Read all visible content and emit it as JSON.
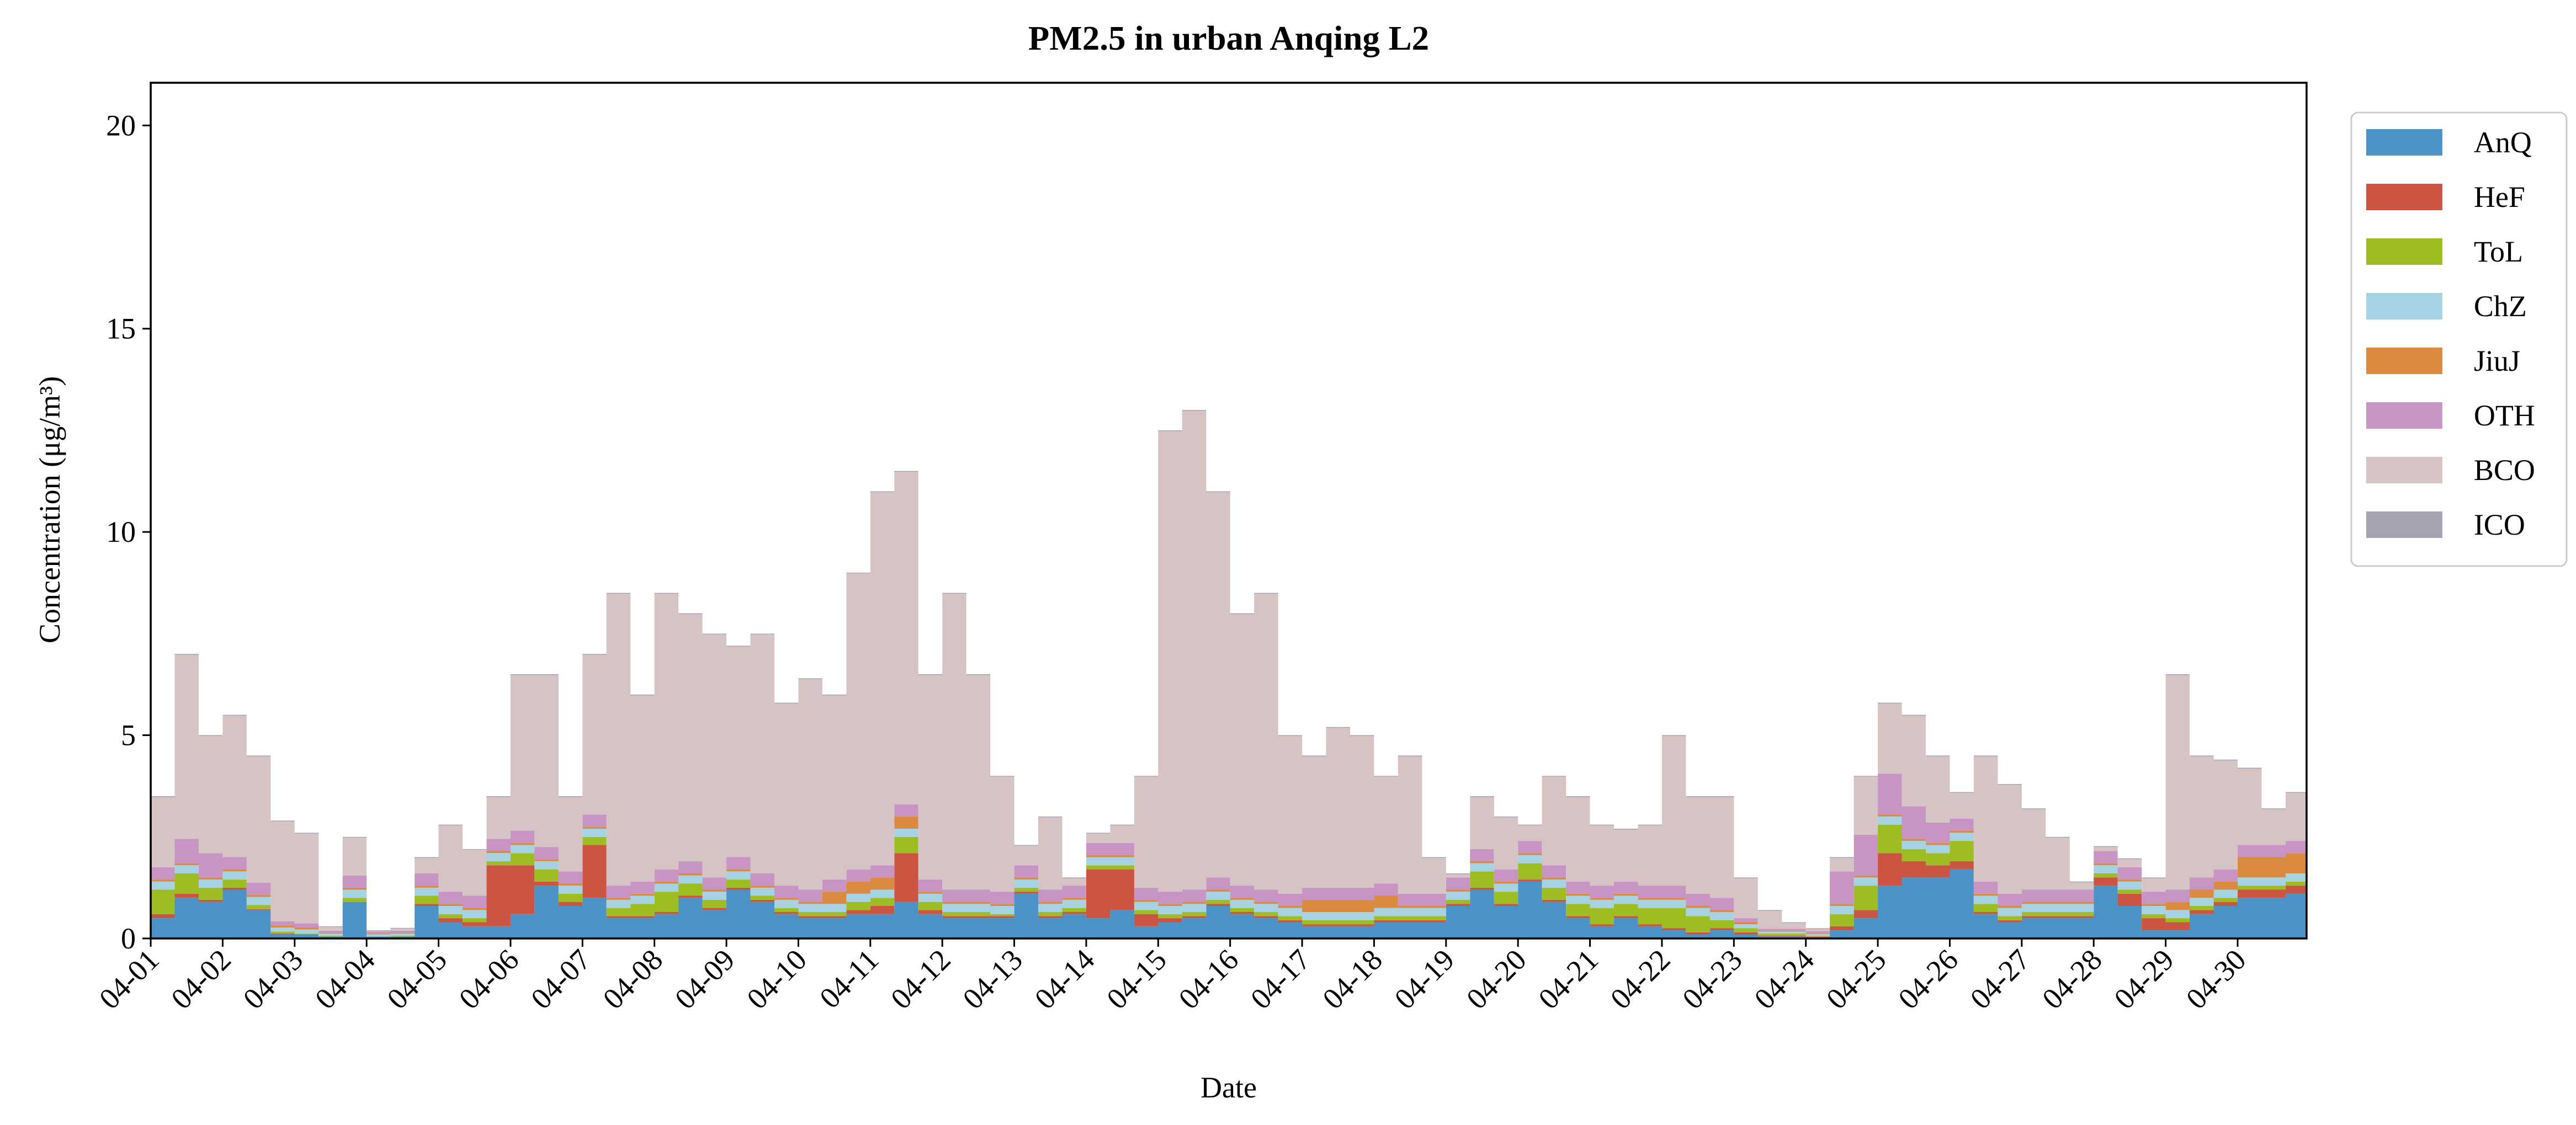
{
  "chart_data": {
    "type": "stacked_area",
    "title": "PM2.5 in urban Anqing L2",
    "xlabel": "Date",
    "ylabel": "Concentration (μg/m³)",
    "xlim": [
      1,
      30.958
    ],
    "ylim": [
      0,
      21.05
    ],
    "yticks": [
      0,
      5,
      10,
      15,
      20
    ],
    "xticks": [
      {
        "value": 1,
        "label": "04-01"
      },
      {
        "value": 2,
        "label": "04-02"
      },
      {
        "value": 3,
        "label": "04-03"
      },
      {
        "value": 4,
        "label": "04-04"
      },
      {
        "value": 5,
        "label": "04-05"
      },
      {
        "value": 6,
        "label": "04-06"
      },
      {
        "value": 7,
        "label": "04-07"
      },
      {
        "value": 8,
        "label": "04-08"
      },
      {
        "value": 9,
        "label": "04-09"
      },
      {
        "value": 10,
        "label": "04-10"
      },
      {
        "value": 11,
        "label": "04-11"
      },
      {
        "value": 12,
        "label": "04-12"
      },
      {
        "value": 13,
        "label": "04-13"
      },
      {
        "value": 14,
        "label": "04-14"
      },
      {
        "value": 15,
        "label": "04-15"
      },
      {
        "value": 16,
        "label": "04-16"
      },
      {
        "value": 17,
        "label": "04-17"
      },
      {
        "value": 18,
        "label": "04-18"
      },
      {
        "value": 19,
        "label": "04-19"
      },
      {
        "value": 20,
        "label": "04-20"
      },
      {
        "value": 21,
        "label": "04-21"
      },
      {
        "value": 22,
        "label": "04-22"
      },
      {
        "value": 23,
        "label": "04-23"
      },
      {
        "value": 24,
        "label": "04-24"
      },
      {
        "value": 25,
        "label": "04-25"
      },
      {
        "value": 26,
        "label": "04-26"
      },
      {
        "value": 27,
        "label": "04-27"
      },
      {
        "value": 28,
        "label": "04-28"
      },
      {
        "value": 29,
        "label": "04-29"
      },
      {
        "value": 30,
        "label": "04-30"
      }
    ],
    "legend": "upper right outside",
    "x": [
      1,
      1.333,
      1.667,
      2,
      2.333,
      2.667,
      3,
      3.333,
      3.667,
      4,
      4.333,
      4.667,
      5,
      5.333,
      5.667,
      6,
      6.333,
      6.667,
      7,
      7.333,
      7.667,
      8,
      8.333,
      8.667,
      9,
      9.333,
      9.667,
      10,
      10.333,
      10.667,
      11,
      11.333,
      11.667,
      12,
      12.333,
      12.667,
      13,
      13.333,
      13.667,
      14,
      14.333,
      14.667,
      15,
      15.333,
      15.667,
      16,
      16.333,
      16.667,
      17,
      17.333,
      17.667,
      18,
      18.333,
      18.667,
      19,
      19.333,
      19.667,
      20,
      20.333,
      20.667,
      21,
      21.333,
      21.667,
      22,
      22.333,
      22.667,
      23,
      23.333,
      23.667,
      24,
      24.333,
      24.667,
      25,
      25.333,
      25.667,
      26,
      26.333,
      26.667,
      27,
      27.333,
      27.667,
      28,
      28.333,
      28.667,
      29,
      29.333,
      29.667,
      30,
      30.333,
      30.667
    ],
    "series": [
      {
        "name": "AnQ",
        "color": "#4b93c6",
        "values": [
          0.5,
          1.0,
          0.9,
          1.2,
          0.7,
          0.1,
          0.1,
          0.05,
          0.9,
          0.05,
          0.05,
          0.8,
          0.4,
          0.3,
          0.3,
          0.6,
          1.3,
          0.8,
          1.0,
          0.5,
          0.5,
          0.6,
          1.0,
          0.7,
          1.2,
          0.9,
          0.6,
          0.5,
          0.5,
          0.6,
          0.6,
          0.9,
          0.6,
          0.5,
          0.5,
          0.5,
          1.1,
          0.5,
          0.6,
          0.5,
          0.7,
          0.3,
          0.4,
          0.5,
          0.8,
          0.6,
          0.5,
          0.4,
          0.3,
          0.3,
          0.3,
          0.4,
          0.4,
          0.4,
          0.8,
          1.2,
          0.8,
          1.4,
          0.9,
          0.5,
          0.3,
          0.5,
          0.3,
          0.2,
          0.1,
          0.2,
          0.1,
          0.05,
          0.05,
          0.02,
          0.2,
          0.5,
          1.3,
          1.5,
          1.5,
          1.7,
          0.6,
          0.4,
          0.5,
          0.5,
          0.5,
          1.3,
          0.8,
          0.2,
          0.2,
          0.6,
          0.8,
          1.0,
          1.0,
          1.1
        ]
      },
      {
        "name": "HeF",
        "color": "#cc5443",
        "values": [
          0.1,
          0.1,
          0.05,
          0.05,
          0.02,
          0.02,
          0,
          0,
          0,
          0,
          0,
          0.05,
          0.1,
          0.1,
          1.5,
          1.2,
          0.1,
          0.1,
          1.3,
          0.05,
          0.05,
          0.05,
          0.05,
          0.05,
          0.05,
          0.05,
          0.05,
          0.05,
          0.05,
          0.1,
          0.2,
          1.2,
          0.1,
          0.05,
          0.05,
          0.05,
          0.05,
          0.05,
          0.05,
          1.2,
          1.0,
          0.3,
          0.1,
          0.05,
          0.05,
          0.05,
          0.05,
          0.05,
          0.05,
          0.05,
          0.05,
          0.05,
          0.05,
          0.05,
          0.05,
          0.05,
          0.05,
          0.05,
          0.05,
          0.05,
          0.05,
          0.05,
          0.05,
          0.05,
          0.05,
          0.05,
          0.05,
          0.02,
          0.02,
          0.02,
          0.1,
          0.2,
          0.8,
          0.4,
          0.3,
          0.2,
          0.05,
          0.05,
          0.05,
          0.05,
          0.05,
          0.2,
          0.3,
          0.3,
          0.2,
          0.1,
          0.1,
          0.2,
          0.2,
          0.2
        ]
      },
      {
        "name": "ToL",
        "color": "#9dbd22",
        "values": [
          0.6,
          0.5,
          0.3,
          0.2,
          0.1,
          0.05,
          0.02,
          0.02,
          0.1,
          0,
          0.02,
          0.2,
          0.1,
          0.1,
          0.1,
          0.3,
          0.3,
          0.2,
          0.2,
          0.2,
          0.3,
          0.5,
          0.3,
          0.2,
          0.2,
          0.1,
          0.1,
          0.1,
          0.1,
          0.2,
          0.2,
          0.4,
          0.2,
          0.1,
          0.1,
          0.05,
          0.1,
          0.1,
          0.1,
          0.1,
          0.1,
          0.1,
          0.1,
          0.1,
          0.1,
          0.1,
          0.1,
          0.1,
          0.1,
          0.1,
          0.1,
          0.1,
          0.1,
          0.1,
          0.1,
          0.4,
          0.3,
          0.4,
          0.3,
          0.3,
          0.4,
          0.3,
          0.4,
          0.5,
          0.4,
          0.2,
          0.1,
          0.05,
          0.05,
          0.02,
          0.3,
          0.6,
          0.7,
          0.3,
          0.3,
          0.5,
          0.2,
          0.1,
          0.1,
          0.1,
          0.1,
          0.1,
          0.1,
          0.1,
          0.1,
          0.1,
          0.1,
          0.1,
          0.1,
          0.1
        ]
      },
      {
        "name": "ChZ",
        "color": "#a5d3e4",
        "values": [
          0.2,
          0.2,
          0.2,
          0.2,
          0.2,
          0.1,
          0.1,
          0.05,
          0.2,
          0.05,
          0.05,
          0.2,
          0.2,
          0.2,
          0.2,
          0.2,
          0.2,
          0.2,
          0.2,
          0.2,
          0.2,
          0.2,
          0.2,
          0.2,
          0.2,
          0.2,
          0.2,
          0.2,
          0.2,
          0.2,
          0.2,
          0.2,
          0.2,
          0.2,
          0.2,
          0.2,
          0.2,
          0.2,
          0.2,
          0.2,
          0.2,
          0.2,
          0.2,
          0.2,
          0.2,
          0.2,
          0.2,
          0.2,
          0.2,
          0.2,
          0.2,
          0.2,
          0.2,
          0.2,
          0.2,
          0.2,
          0.2,
          0.2,
          0.2,
          0.2,
          0.2,
          0.2,
          0.2,
          0.2,
          0.2,
          0.2,
          0.1,
          0.05,
          0.05,
          0.05,
          0.2,
          0.2,
          0.2,
          0.2,
          0.2,
          0.2,
          0.2,
          0.2,
          0.2,
          0.2,
          0.2,
          0.2,
          0.2,
          0.2,
          0.2,
          0.2,
          0.2,
          0.2,
          0.2,
          0.2
        ]
      },
      {
        "name": "JiuJ",
        "color": "#da8a41",
        "values": [
          0.05,
          0.05,
          0.05,
          0.05,
          0.05,
          0.05,
          0.05,
          0.02,
          0.05,
          0.02,
          0.02,
          0.05,
          0.05,
          0.05,
          0.05,
          0.05,
          0.05,
          0.05,
          0.05,
          0.05,
          0.05,
          0.05,
          0.05,
          0.05,
          0.05,
          0.05,
          0.05,
          0.05,
          0.3,
          0.3,
          0.3,
          0.3,
          0.05,
          0.05,
          0.05,
          0.05,
          0.05,
          0.05,
          0.05,
          0.05,
          0.05,
          0.05,
          0.05,
          0.05,
          0.05,
          0.05,
          0.05,
          0.05,
          0.3,
          0.3,
          0.3,
          0.3,
          0.05,
          0.05,
          0.05,
          0.05,
          0.05,
          0.05,
          0.05,
          0.05,
          0.05,
          0.05,
          0.05,
          0.05,
          0.05,
          0.05,
          0.05,
          0.02,
          0.02,
          0.02,
          0.05,
          0.05,
          0.05,
          0.05,
          0.05,
          0.05,
          0.05,
          0.05,
          0.05,
          0.05,
          0.05,
          0.05,
          0.05,
          0.05,
          0.2,
          0.2,
          0.2,
          0.5,
          0.5,
          0.5
        ]
      },
      {
        "name": "OTH",
        "color": "#c794c4",
        "values": [
          0.3,
          0.6,
          0.6,
          0.3,
          0.3,
          0.1,
          0.1,
          0.05,
          0.3,
          0.05,
          0.05,
          0.3,
          0.3,
          0.3,
          0.3,
          0.3,
          0.3,
          0.3,
          0.3,
          0.3,
          0.3,
          0.3,
          0.3,
          0.3,
          0.3,
          0.3,
          0.3,
          0.3,
          0.3,
          0.3,
          0.3,
          0.3,
          0.3,
          0.3,
          0.3,
          0.3,
          0.3,
          0.3,
          0.3,
          0.3,
          0.3,
          0.3,
          0.3,
          0.3,
          0.3,
          0.3,
          0.3,
          0.3,
          0.3,
          0.3,
          0.3,
          0.3,
          0.3,
          0.3,
          0.3,
          0.3,
          0.3,
          0.3,
          0.3,
          0.3,
          0.3,
          0.3,
          0.3,
          0.3,
          0.3,
          0.3,
          0.1,
          0.05,
          0.05,
          0.05,
          0.8,
          1.0,
          1.0,
          0.8,
          0.5,
          0.3,
          0.3,
          0.3,
          0.3,
          0.3,
          0.3,
          0.3,
          0.3,
          0.3,
          0.3,
          0.3,
          0.3,
          0.3,
          0.3,
          0.3
        ]
      },
      {
        "name": "BCO",
        "color": "#d5c4c3",
        "values": [
          1.73,
          4.53,
          2.88,
          3.48,
          3.11,
          2.46,
          2.21,
          0.09,
          0.93,
          0.01,
          0.05,
          0.38,
          1.63,
          1.13,
          1.03,
          3.83,
          4.23,
          1.83,
          3.93,
          7.18,
          4.58,
          6.78,
          6.08,
          5.98,
          5.18,
          5.88,
          4.48,
          5.18,
          4.53,
          7.28,
          9.18,
          8.18,
          5.03,
          7.28,
          5.28,
          2.83,
          0.48,
          1.78,
          0.18,
          0.23,
          0.43,
          2.73,
          11.33,
          11.78,
          9.48,
          6.68,
          7.28,
          3.88,
          3.23,
          3.93,
          3.73,
          2.63,
          3.38,
          0.88,
          0.08,
          1.28,
          1.28,
          0.38,
          2.18,
          2.08,
          1.48,
          1.28,
          1.48,
          3.68,
          2.38,
          2.48,
          0.98,
          0.44,
          0.14,
          0.05,
          0.33,
          1.43,
          1.73,
          2.23,
          1.63,
          0.63,
          3.08,
          2.68,
          1.98,
          1.28,
          0.18,
          0.1,
          0.2,
          0.33,
          5.28,
          2.98,
          2.68,
          1.88,
          0.88,
          1.18
        ]
      },
      {
        "name": "ICO",
        "color": "#a3a3b1",
        "values": [
          0.02,
          0.02,
          0.02,
          0.02,
          0.02,
          0.02,
          0.02,
          0.02,
          0.02,
          0.02,
          0.02,
          0.02,
          0.02,
          0.02,
          0.02,
          0.02,
          0.02,
          0.02,
          0.02,
          0.02,
          0.02,
          0.02,
          0.02,
          0.02,
          0.02,
          0.02,
          0.02,
          0.02,
          0.02,
          0.02,
          0.02,
          0.02,
          0.02,
          0.02,
          0.02,
          0.02,
          0.02,
          0.02,
          0.02,
          0.02,
          0.02,
          0.02,
          0.02,
          0.02,
          0.02,
          0.02,
          0.02,
          0.02,
          0.02,
          0.02,
          0.02,
          0.02,
          0.02,
          0.02,
          0.02,
          0.02,
          0.02,
          0.02,
          0.02,
          0.02,
          0.02,
          0.02,
          0.02,
          0.02,
          0.02,
          0.02,
          0.02,
          0.02,
          0.02,
          0.02,
          0.02,
          0.02,
          0.02,
          0.02,
          0.02,
          0.02,
          0.02,
          0.02,
          0.02,
          0.02,
          0.02,
          0.02,
          0.02,
          0.02,
          0.02,
          0.02,
          0.02,
          0.02,
          0.02,
          0.02
        ]
      }
    ]
  }
}
